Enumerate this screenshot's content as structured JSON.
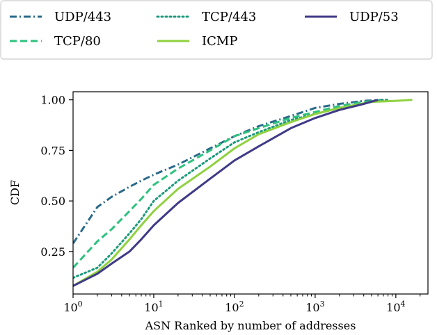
{
  "chart_data": {
    "type": "line",
    "xlabel": "ASN Ranked by number of addresses",
    "ylabel": "CDF",
    "xscale": "log",
    "xlim": [
      1,
      25000
    ],
    "ylim": [
      0.04,
      1.04
    ],
    "x_ticks": [
      {
        "value": 1,
        "base": "10",
        "exp": "0"
      },
      {
        "value": 10,
        "base": "10",
        "exp": "1"
      },
      {
        "value": 100,
        "base": "10",
        "exp": "2"
      },
      {
        "value": 1000,
        "base": "10",
        "exp": "3"
      },
      {
        "value": 10000,
        "base": "10",
        "exp": "4"
      }
    ],
    "y_ticks": [
      {
        "value": 0.25,
        "label": "0.25"
      },
      {
        "value": 0.5,
        "label": "0.50"
      },
      {
        "value": 0.75,
        "label": "0.75"
      },
      {
        "value": 1.0,
        "label": "1.00"
      }
    ],
    "grid": false,
    "legend_position": "top",
    "series": [
      {
        "name": "UDP/443",
        "color": "#2a6a8a",
        "dash": "dashdot",
        "x": [
          1,
          2,
          3,
          5,
          7,
          10,
          20,
          50,
          100,
          200,
          500,
          1000,
          2000,
          4000,
          7000
        ],
        "y": [
          0.29,
          0.47,
          0.52,
          0.57,
          0.6,
          0.63,
          0.68,
          0.76,
          0.82,
          0.87,
          0.92,
          0.96,
          0.98,
          0.995,
          1.0
        ]
      },
      {
        "name": "TCP/80",
        "color": "#2ec27e",
        "dash": "dashed",
        "x": [
          1,
          2,
          3,
          5,
          7,
          10,
          20,
          50,
          100,
          200,
          500,
          1000,
          2000,
          4000,
          8000
        ],
        "y": [
          0.17,
          0.3,
          0.36,
          0.45,
          0.51,
          0.58,
          0.66,
          0.75,
          0.82,
          0.86,
          0.91,
          0.94,
          0.97,
          0.99,
          1.0
        ]
      },
      {
        "name": "TCP/443",
        "color": "#1d9a7c",
        "dash": "dotted",
        "x": [
          1,
          2,
          3,
          5,
          7,
          10,
          20,
          50,
          100,
          200,
          500,
          1000,
          2000,
          5000,
          8000
        ],
        "y": [
          0.12,
          0.17,
          0.24,
          0.34,
          0.41,
          0.5,
          0.6,
          0.71,
          0.79,
          0.84,
          0.9,
          0.93,
          0.96,
          0.99,
          1.0
        ]
      },
      {
        "name": "ICMP",
        "color": "#8fd13f",
        "dash": "solid",
        "x": [
          1,
          2,
          3,
          5,
          7,
          10,
          20,
          50,
          100,
          200,
          500,
          1000,
          2000,
          5000,
          10000,
          16000
        ],
        "y": [
          0.08,
          0.15,
          0.21,
          0.31,
          0.38,
          0.45,
          0.56,
          0.67,
          0.76,
          0.83,
          0.89,
          0.93,
          0.96,
          0.99,
          0.995,
          1.0
        ]
      },
      {
        "name": "UDP/53",
        "color": "#3f3a87",
        "dash": "solid",
        "x": [
          1,
          2,
          3,
          5,
          7,
          10,
          20,
          50,
          100,
          200,
          500,
          1000,
          2000,
          4000,
          6000
        ],
        "y": [
          0.08,
          0.14,
          0.19,
          0.25,
          0.31,
          0.38,
          0.49,
          0.61,
          0.7,
          0.77,
          0.86,
          0.91,
          0.95,
          0.98,
          1.0
        ]
      }
    ],
    "legend": [
      {
        "label": "UDP/443",
        "series": 0
      },
      {
        "label": "TCP/80",
        "series": 1
      },
      {
        "label": "TCP/443",
        "series": 2
      },
      {
        "label": "ICMP",
        "series": 3
      },
      {
        "label": "UDP/53",
        "series": 4
      }
    ]
  }
}
